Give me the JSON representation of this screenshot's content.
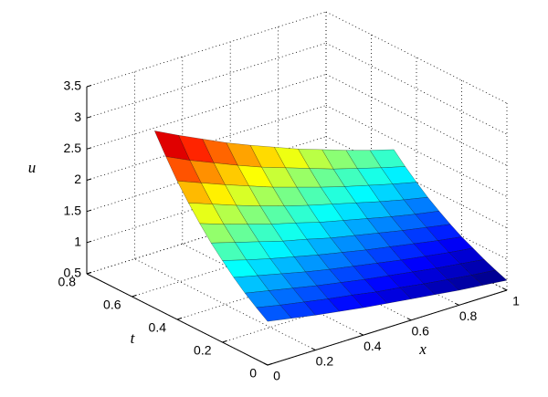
{
  "chart_data": {
    "type": "surface",
    "x_label": "x",
    "y_label": "t",
    "z_label": "u",
    "x": [
      0,
      0.1,
      0.2,
      0.3,
      0.4,
      0.5,
      0.6,
      0.7,
      0.8,
      0.9,
      1
    ],
    "y": [
      0,
      0.05,
      0.1,
      0.15,
      0.2,
      0.25,
      0.3,
      0.35,
      0.4,
      0.45,
      0.5
    ],
    "z": [
      [
        1.2,
        1.13,
        1.06,
        1.0,
        0.94,
        0.89,
        0.84,
        0.79,
        0.74,
        0.7,
        0.66
      ],
      [
        1.33,
        1.25,
        1.18,
        1.11,
        1.05,
        0.98,
        0.93,
        0.87,
        0.82,
        0.77,
        0.73
      ],
      [
        1.47,
        1.39,
        1.31,
        1.23,
        1.16,
        1.09,
        1.03,
        0.97,
        0.91,
        0.86,
        0.81
      ],
      [
        1.63,
        1.54,
        1.45,
        1.36,
        1.28,
        1.21,
        1.14,
        1.07,
        1.01,
        0.95,
        0.9
      ],
      [
        1.81,
        1.7,
        1.6,
        1.51,
        1.42,
        1.34,
        1.26,
        1.19,
        1.12,
        1.05,
        0.99
      ],
      [
        2.0,
        1.89,
        1.78,
        1.67,
        1.58,
        1.48,
        1.4,
        1.32,
        1.24,
        1.17,
        1.1
      ],
      [
        2.22,
        2.09,
        1.97,
        1.85,
        1.75,
        1.64,
        1.55,
        1.46,
        1.37,
        1.29,
        1.22
      ],
      [
        2.46,
        2.32,
        2.18,
        2.05,
        1.93,
        1.82,
        1.72,
        1.62,
        1.52,
        1.43,
        1.35
      ],
      [
        2.72,
        2.57,
        2.42,
        2.28,
        2.14,
        2.02,
        1.9,
        1.79,
        1.69,
        1.59,
        1.5
      ],
      [
        3.02,
        2.84,
        2.68,
        2.52,
        2.37,
        2.24,
        2.11,
        1.98,
        1.87,
        1.76,
        1.66
      ],
      [
        3.34,
        3.15,
        2.97,
        2.79,
        2.63,
        2.48,
        2.33,
        2.2,
        2.07,
        1.95,
        1.84
      ]
    ],
    "xlim": [
      0,
      1
    ],
    "ylim": [
      0,
      0.8
    ],
    "zlim": [
      0.5,
      3.5
    ],
    "xticks": [
      0,
      0.2,
      0.4,
      0.6,
      0.8,
      1
    ],
    "yticks": [
      0,
      0.2,
      0.4,
      0.6,
      0.8
    ],
    "zticks": [
      0.5,
      1,
      1.5,
      2,
      2.5,
      3,
      3.5
    ],
    "grid": true,
    "colormap": "jet",
    "edge_color": "#000000"
  }
}
